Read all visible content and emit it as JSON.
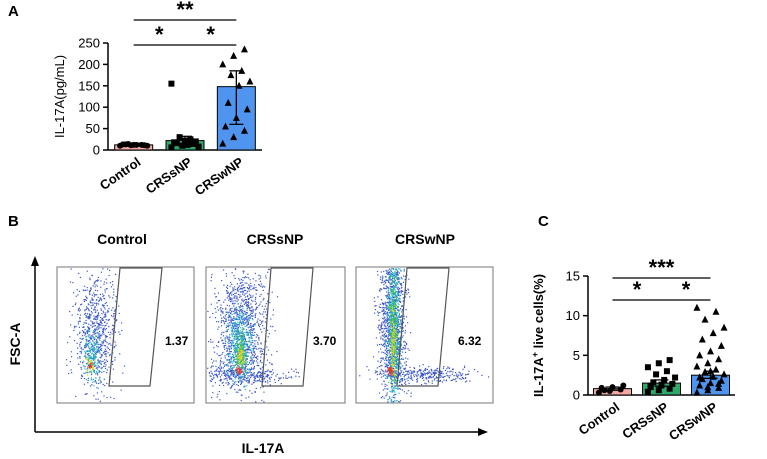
{
  "panels": {
    "a": "A",
    "b": "B",
    "c": "C"
  },
  "flow": {
    "titles": [
      "Control",
      "CRSsNP",
      "CRSwNP"
    ],
    "gate_values": [
      "1.37",
      "3.70",
      "6.32"
    ],
    "y_label": "FSC-A",
    "x_label": "IL-17A"
  },
  "colors": {
    "control": "#f4a7a3",
    "crssnp": "#2ea86b",
    "crswnp": "#4f95ef"
  },
  "chart_data": [
    {
      "type": "bar",
      "panel": "A",
      "categories": [
        "Control",
        "CRSsNP",
        "CRSwNP"
      ],
      "values": [
        12,
        22,
        148
      ],
      "error_low": [
        9,
        10,
        60
      ],
      "error_high": [
        16,
        32,
        185
      ],
      "points": [
        [
          10,
          11,
          12,
          13,
          12,
          11,
          13,
          12,
          10,
          14
        ],
        [
          6,
          10,
          14,
          18,
          22,
          20,
          16,
          12,
          8,
          30,
          25,
          155
        ],
        [
          15,
          30,
          45,
          55,
          75,
          95,
          110,
          150,
          160,
          175,
          185,
          200,
          220,
          235
        ]
      ],
      "markers": [
        "circle",
        "square",
        "triangle"
      ],
      "ylabel": "IL-17A(pg/mL)",
      "xlabel": "",
      "ylim": [
        0,
        250
      ],
      "yticks": [
        "0",
        "50",
        "100",
        "150",
        "200",
        "250"
      ],
      "significance": [
        {
          "from": 0,
          "to": 1,
          "label": "*"
        },
        {
          "from": 1,
          "to": 2,
          "label": "*"
        },
        {
          "from": 0,
          "to": 2,
          "label": "**"
        }
      ]
    },
    {
      "type": "bar",
      "panel": "C",
      "categories": [
        "Control",
        "CRSsNP",
        "CRSwNP"
      ],
      "values": [
        0.8,
        1.5,
        2.5
      ],
      "error_low": [
        0.6,
        1.1,
        2.1
      ],
      "error_high": [
        1.0,
        1.9,
        3.0
      ],
      "points": [
        [
          0.3,
          0.5,
          0.7,
          0.9,
          1.0,
          1.2,
          0.6
        ],
        [
          0.4,
          0.6,
          0.8,
          1.0,
          1.2,
          1.4,
          1.6,
          1.9,
          2.2,
          2.6,
          3.0,
          3.5,
          4.0,
          4.4,
          1.1,
          1.3
        ],
        [
          0.3,
          0.6,
          0.9,
          1.2,
          1.5,
          1.8,
          2.0,
          2.3,
          2.6,
          2.9,
          3.2,
          3.6,
          4.0,
          4.5,
          5.0,
          5.5,
          6.2,
          7.0,
          7.8,
          8.5,
          9.5,
          10.5,
          11.0,
          1.0,
          1.4,
          2.2,
          3.0
        ]
      ],
      "markers": [
        "circle",
        "square",
        "triangle"
      ],
      "ylabel_main": "IL-17A",
      "ylabel_sup": "+",
      "ylabel_rest": " live cells(%)",
      "xlabel": "",
      "ylim": [
        0,
        15
      ],
      "yticks": [
        "0",
        "5",
        "10",
        "15"
      ],
      "significance": [
        {
          "from": 0,
          "to": 1,
          "label": "*"
        },
        {
          "from": 1,
          "to": 2,
          "label": "*"
        },
        {
          "from": 0,
          "to": 2,
          "label": "***"
        }
      ]
    }
  ]
}
